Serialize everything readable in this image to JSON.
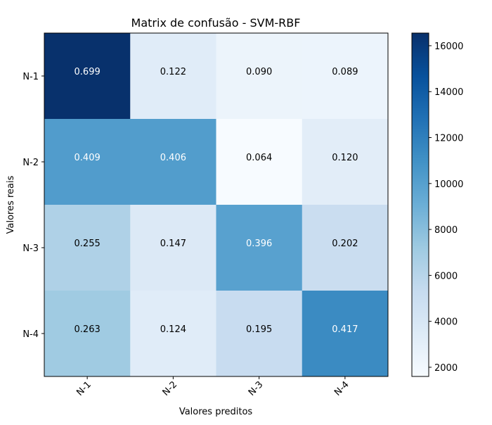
{
  "chart_data": {
    "type": "heatmap",
    "title": "Matrix de confusão - SVM-RBF",
    "xlabel": "Valores preditos",
    "ylabel": "Valores reais",
    "x_categories": [
      "N-1",
      "N-2",
      "N-3",
      "N-4"
    ],
    "y_categories": [
      "N-1",
      "N-2",
      "N-3",
      "N-4"
    ],
    "cell_labels": [
      [
        "0.699",
        "0.122",
        "0.090",
        "0.089"
      ],
      [
        "0.409",
        "0.406",
        "0.064",
        "0.120"
      ],
      [
        "0.255",
        "0.147",
        "0.396",
        "0.202"
      ],
      [
        "0.263",
        "0.124",
        "0.195",
        "0.417"
      ]
    ],
    "color_values": [
      [
        16500,
        3300,
        2450,
        2400
      ],
      [
        10250,
        10200,
        1600,
        3200
      ],
      [
        6400,
        3650,
        9950,
        5050
      ],
      [
        7100,
        3300,
        5200,
        11350
      ]
    ],
    "colorbar": {
      "range": [
        1600,
        16550
      ],
      "ticks": [
        2000,
        4000,
        6000,
        8000,
        10000,
        12000,
        14000,
        16000
      ],
      "colormap": "Blues"
    },
    "text_color_light": "#ffffff",
    "text_color_dark": "#000000"
  }
}
